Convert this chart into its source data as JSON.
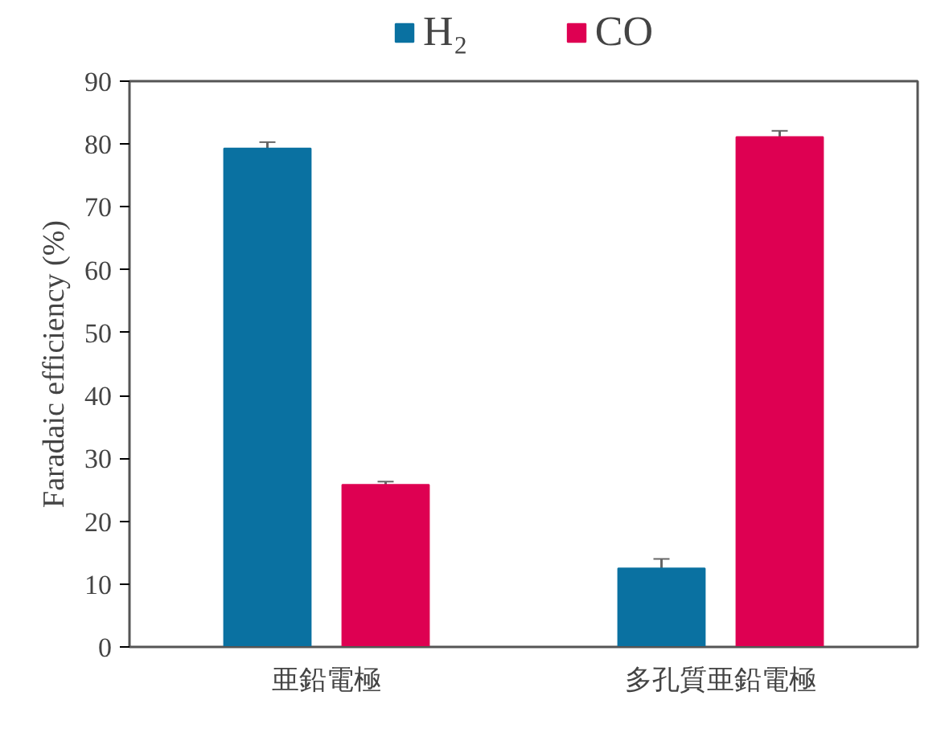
{
  "chart_data": {
    "type": "bar",
    "ylabel": "Faradaic efficiency (%)",
    "categories": [
      "亜鉛電極",
      "多孔質亜鉛電極"
    ],
    "series": [
      {
        "name": "H₂",
        "color": "#0a71a1",
        "values": [
          79.3,
          12.5
        ],
        "errors": [
          1,
          1.5
        ]
      },
      {
        "name": "CO",
        "color": "#de0052",
        "values": [
          25.8,
          81.1
        ],
        "errors": [
          0.5,
          1
        ]
      }
    ],
    "ylim": [
      0,
      90
    ],
    "yticks": [
      0,
      10,
      20,
      30,
      40,
      50,
      60,
      70,
      80,
      90
    ],
    "grid": false,
    "legend": "top"
  }
}
